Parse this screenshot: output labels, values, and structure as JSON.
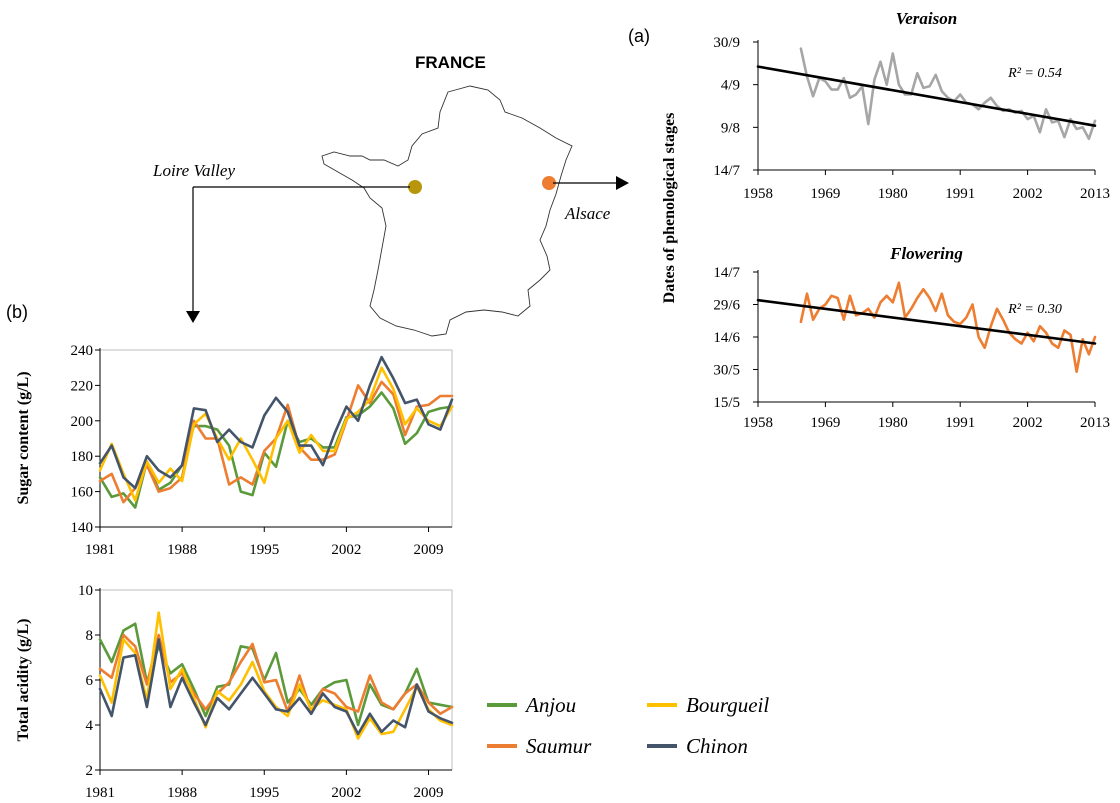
{
  "map": {
    "country": "FRANCE",
    "regions": [
      {
        "name": "Loire Valley",
        "color": "#b8960c"
      },
      {
        "name": "Alsace",
        "color": "#ed7d31"
      }
    ]
  },
  "panels": {
    "a": "(a)",
    "b": "(b)"
  },
  "shared_ylabel_a": "Dates of phenological stages",
  "legend": [
    {
      "name": "Anjou",
      "color": "#5b9a3b"
    },
    {
      "name": "Bourgueil",
      "color": "#ffc000"
    },
    {
      "name": "Saumur",
      "color": "#ed7d31"
    },
    {
      "name": "Chinon",
      "color": "#44546a"
    }
  ],
  "chart_data": [
    {
      "id": "veraison",
      "type": "line",
      "title": "Veraison",
      "annotation": "R² = 0.54",
      "xlim": [
        1958,
        2013
      ],
      "xticks": [
        "1958",
        "1969",
        "1980",
        "1991",
        "2002",
        "2013"
      ],
      "ylim": [
        0,
        78
      ],
      "yticks": [
        {
          "v": 0,
          "label": "14/7"
        },
        {
          "v": 26,
          "label": "9/8"
        },
        {
          "v": 52,
          "label": "4/9"
        },
        {
          "v": 78,
          "label": "30/9"
        }
      ],
      "ylim_note": "y values are days after 14 July",
      "series": [
        {
          "color": "#a6a6a6",
          "x": [
            1965,
            1966,
            1967,
            1968,
            1969,
            1970,
            1971,
            1972,
            1973,
            1974,
            1975,
            1976,
            1977,
            1978,
            1979,
            1980,
            1981,
            1982,
            1983,
            1984,
            1985,
            1986,
            1987,
            1988,
            1989,
            1990,
            1991,
            1992,
            1993,
            1994,
            1995,
            1996,
            1997,
            1998,
            1999,
            2000,
            2001,
            2002,
            2003,
            2004,
            2005,
            2006,
            2007,
            2008,
            2009,
            2010,
            2011,
            2012,
            2013
          ],
          "y": [
            74,
            57,
            45,
            56,
            54,
            49,
            49,
            56,
            44,
            46,
            51,
            28,
            55,
            66,
            52,
            71,
            52,
            46,
            46,
            59,
            50,
            51,
            58,
            48,
            44,
            42,
            46,
            41,
            40,
            37,
            41,
            44,
            39,
            36,
            37,
            35,
            36,
            31,
            33,
            23,
            37,
            29,
            30,
            20,
            31,
            25,
            26,
            19,
            30
          ]
        },
        {
          "color": "#000000",
          "x": [
            1958,
            2013
          ],
          "y": [
            63,
            27
          ]
        }
      ]
    },
    {
      "id": "flowering",
      "type": "line",
      "title": "Flowering",
      "annotation": "R² = 0.30",
      "xlim": [
        1958,
        2013
      ],
      "xticks": [
        "1958",
        "1969",
        "1980",
        "1991",
        "2002",
        "2013"
      ],
      "ylim": [
        0,
        60
      ],
      "yticks": [
        {
          "v": 0,
          "label": "15/5"
        },
        {
          "v": 15,
          "label": "30/5"
        },
        {
          "v": 30,
          "label": "14/6"
        },
        {
          "v": 45,
          "label": "29/6"
        },
        {
          "v": 60,
          "label": "14/7"
        }
      ],
      "ylim_note": "y values are days after 15 May",
      "series": [
        {
          "color": "#ed7d31",
          "x": [
            1965,
            1966,
            1967,
            1968,
            1969,
            1970,
            1971,
            1972,
            1973,
            1974,
            1975,
            1976,
            1977,
            1978,
            1979,
            1980,
            1981,
            1982,
            1983,
            1984,
            1985,
            1986,
            1987,
            1988,
            1989,
            1990,
            1991,
            1992,
            1993,
            1994,
            1995,
            1996,
            1997,
            1998,
            1999,
            2000,
            2001,
            2002,
            2003,
            2004,
            2005,
            2006,
            2007,
            2008,
            2009,
            2010,
            2011,
            2012,
            2013
          ],
          "y": [
            37,
            50,
            38,
            43,
            45,
            49,
            48,
            38,
            49,
            40,
            41,
            43,
            39,
            46,
            49,
            46,
            55,
            39,
            43,
            48,
            52,
            48,
            42,
            50,
            40,
            37,
            36,
            39,
            45,
            30,
            25,
            35,
            43,
            38,
            32,
            29,
            27,
            32,
            28,
            35,
            32,
            27,
            25,
            33,
            31,
            14,
            29,
            22,
            30
          ]
        },
        {
          "color": "#000000",
          "x": [
            1958,
            2013
          ],
          "y": [
            47,
            27
          ]
        }
      ]
    },
    {
      "id": "sugar",
      "type": "line",
      "title": "",
      "ylabel": "Sugar content (g/L)",
      "xlim": [
        1981,
        2011
      ],
      "xticks": [
        "1981",
        "1988",
        "1995",
        "2002",
        "2009"
      ],
      "ylim": [
        140,
        240
      ],
      "yticks": [
        {
          "v": 140,
          "label": "140"
        },
        {
          "v": 160,
          "label": "160"
        },
        {
          "v": 180,
          "label": "180"
        },
        {
          "v": 200,
          "label": "200"
        },
        {
          "v": 220,
          "label": "220"
        },
        {
          "v": 240,
          "label": "240"
        }
      ],
      "series": [
        {
          "name": "Anjou",
          "color": "#5b9a3b",
          "x": [
            1981,
            1982,
            1983,
            1984,
            1985,
            1986,
            1987,
            1988,
            1989,
            1990,
            1991,
            1992,
            1993,
            1994,
            1995,
            1996,
            1997,
            1998,
            1999,
            2000,
            2001,
            2002,
            2003,
            2004,
            2005,
            2006,
            2007,
            2008,
            2009,
            2010,
            2011
          ],
          "y": [
            168,
            157,
            159,
            151,
            177,
            161,
            165,
            175,
            197,
            197,
            195,
            186,
            160,
            158,
            182,
            174,
            200,
            188,
            190,
            185,
            185,
            202,
            203,
            208,
            216,
            207,
            187,
            193,
            205,
            207,
            208
          ]
        },
        {
          "name": "Saumur",
          "color": "#ed7d31",
          "x": [
            1981,
            1982,
            1983,
            1984,
            1985,
            1986,
            1987,
            1988,
            1989,
            1990,
            1991,
            1992,
            1993,
            1994,
            1995,
            1996,
            1997,
            1998,
            1999,
            2000,
            2001,
            2002,
            2003,
            2004,
            2005,
            2006,
            2007,
            2008,
            2009,
            2010,
            2011
          ],
          "y": [
            166,
            170,
            154,
            162,
            175,
            160,
            162,
            168,
            200,
            190,
            190,
            164,
            168,
            164,
            183,
            190,
            209,
            185,
            178,
            178,
            181,
            200,
            220,
            210,
            222,
            215,
            192,
            208,
            209,
            214,
            214
          ]
        },
        {
          "name": "Bourgueil",
          "color": "#ffc000",
          "x": [
            1981,
            1982,
            1983,
            1984,
            1985,
            1986,
            1987,
            1988,
            1989,
            1990,
            1991,
            1992,
            1993,
            1994,
            1995,
            1996,
            1997,
            1998,
            1999,
            2000,
            2001,
            2002,
            2003,
            2004,
            2005,
            2006,
            2007,
            2008,
            2009,
            2010,
            2011
          ],
          "y": [
            172,
            187,
            170,
            155,
            177,
            165,
            173,
            166,
            198,
            204,
            190,
            178,
            190,
            178,
            165,
            190,
            200,
            182,
            192,
            183,
            183,
            201,
            205,
            212,
            230,
            218,
            198,
            207,
            200,
            197,
            208
          ]
        },
        {
          "name": "Chinon",
          "color": "#44546a",
          "x": [
            1981,
            1982,
            1983,
            1984,
            1985,
            1986,
            1987,
            1988,
            1989,
            1990,
            1991,
            1992,
            1993,
            1994,
            1995,
            1996,
            1997,
            1998,
            1999,
            2000,
            2001,
            2002,
            2003,
            2004,
            2005,
            2006,
            2007,
            2008,
            2009,
            2010,
            2011
          ],
          "y": [
            176,
            186,
            168,
            162,
            180,
            172,
            168,
            175,
            207,
            206,
            188,
            195,
            188,
            185,
            203,
            213,
            205,
            186,
            186,
            175,
            193,
            208,
            200,
            220,
            236,
            224,
            210,
            212,
            198,
            195,
            212
          ]
        }
      ]
    },
    {
      "id": "acidity",
      "type": "line",
      "title": "",
      "ylabel": "Total acidity (g/L)",
      "xlim": [
        1981,
        2011
      ],
      "xticks": [
        "1981",
        "1988",
        "1995",
        "2002",
        "2009"
      ],
      "ylim": [
        2,
        10
      ],
      "yticks": [
        {
          "v": 2,
          "label": "2"
        },
        {
          "v": 4,
          "label": "4"
        },
        {
          "v": 6,
          "label": "6"
        },
        {
          "v": 8,
          "label": "8"
        },
        {
          "v": 10,
          "label": "10"
        }
      ],
      "series": [
        {
          "name": "Anjou",
          "color": "#5b9a3b",
          "x": [
            1981,
            1982,
            1983,
            1984,
            1985,
            1986,
            1987,
            1988,
            1989,
            1990,
            1991,
            1992,
            1993,
            1994,
            1995,
            1996,
            1997,
            1998,
            1999,
            2000,
            2001,
            2002,
            2003,
            2004,
            2005,
            2006,
            2007,
            2008,
            2009,
            2010,
            2011
          ],
          "y": [
            7.8,
            6.8,
            8.2,
            8.5,
            5.9,
            7.5,
            6.3,
            6.7,
            5.6,
            4.4,
            5.7,
            5.8,
            7.5,
            7.4,
            6.0,
            7.2,
            5.0,
            5.6,
            4.9,
            5.6,
            5.9,
            6.0,
            4.0,
            5.8,
            4.9,
            4.7,
            5.4,
            6.5,
            5.0,
            4.9,
            4.8
          ]
        },
        {
          "name": "Saumur",
          "color": "#ed7d31",
          "x": [
            1981,
            1982,
            1983,
            1984,
            1985,
            1986,
            1987,
            1988,
            1989,
            1990,
            1991,
            1992,
            1993,
            1994,
            1995,
            1996,
            1997,
            1998,
            1999,
            2000,
            2001,
            2002,
            2003,
            2004,
            2005,
            2006,
            2007,
            2008,
            2009,
            2010,
            2011
          ],
          "y": [
            6.5,
            6.1,
            8.0,
            7.5,
            5.8,
            8.0,
            5.9,
            6.3,
            5.4,
            4.7,
            5.4,
            5.9,
            6.8,
            7.6,
            5.9,
            6.0,
            4.6,
            6.2,
            4.6,
            5.6,
            5.4,
            4.8,
            4.6,
            6.2,
            5.0,
            4.7,
            5.4,
            5.8,
            5.0,
            4.5,
            4.8
          ]
        },
        {
          "name": "Bourgueil",
          "color": "#ffc000",
          "x": [
            1981,
            1982,
            1983,
            1984,
            1985,
            1986,
            1987,
            1988,
            1989,
            1990,
            1991,
            1992,
            1993,
            1994,
            1995,
            1996,
            1997,
            1998,
            1999,
            2000,
            2001,
            2002,
            2003,
            2004,
            2005,
            2006,
            2007,
            2008,
            2009,
            2010,
            2011
          ],
          "y": [
            6.2,
            5.0,
            7.8,
            7.2,
            5.1,
            9.0,
            5.6,
            6.5,
            5.2,
            3.9,
            5.5,
            5.1,
            5.8,
            6.8,
            5.5,
            4.8,
            4.4,
            5.8,
            4.7,
            5.1,
            4.9,
            4.7,
            3.4,
            4.3,
            3.6,
            3.7,
            4.7,
            5.7,
            4.7,
            4.2,
            4.0
          ]
        },
        {
          "name": "Chinon",
          "color": "#44546a",
          "x": [
            1981,
            1982,
            1983,
            1984,
            1985,
            1986,
            1987,
            1988,
            1989,
            1990,
            1991,
            1992,
            1993,
            1994,
            1995,
            1996,
            1997,
            1998,
            1999,
            2000,
            2001,
            2002,
            2003,
            2004,
            2005,
            2006,
            2007,
            2008,
            2009,
            2010,
            2011
          ],
          "y": [
            5.6,
            4.4,
            7.0,
            7.1,
            4.8,
            7.8,
            4.8,
            6.1,
            5.0,
            4.0,
            5.2,
            4.7,
            5.4,
            6.1,
            5.4,
            4.7,
            4.6,
            5.2,
            4.5,
            5.4,
            4.8,
            4.6,
            3.6,
            4.5,
            3.7,
            4.2,
            3.9,
            5.8,
            4.6,
            4.3,
            4.1
          ]
        }
      ]
    }
  ]
}
